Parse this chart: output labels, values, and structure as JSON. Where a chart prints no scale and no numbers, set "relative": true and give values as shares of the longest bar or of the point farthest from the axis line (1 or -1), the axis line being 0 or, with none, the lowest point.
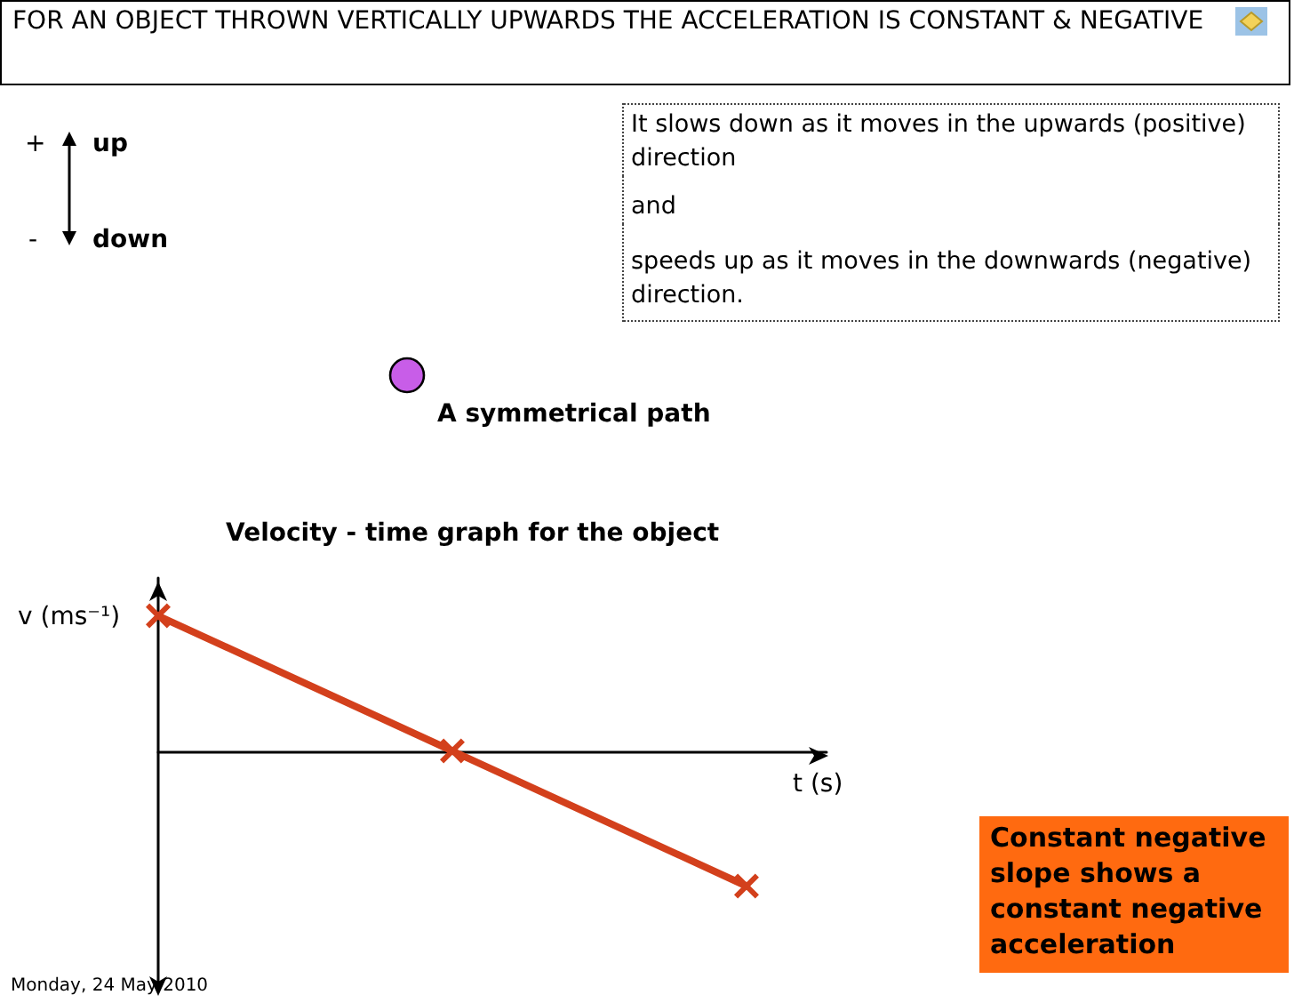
{
  "chart_data": {
    "type": "line",
    "title": "Velocity - time graph for the object",
    "xlabel": "t (s)",
    "ylabel": "v (ms⁻¹)",
    "categories": [
      null,
      null,
      null
    ],
    "series": [
      {
        "color": "#d3401c",
        "values": [
          1,
          0,
          -1
        ]
      }
    ],
    "relative": true,
    "marker": "cross",
    "line_style": "solid",
    "grid": false,
    "annotations": [
      "FOR AN OBJECT THROWN VERTICALLY UPWARDS THE ACCELERATION IS CONSTANT & NEGATIVE",
      "+",
      "up",
      "-",
      "down",
      "It slows down as it moves in the upwards (positive) direction",
      "and",
      "speeds up as it moves in the downwards (negative) direction.",
      "A symmetrical path",
      "Constant negative slope shows a constant negative acceleration",
      "Monday, 24 May 2010"
    ]
  }
}
